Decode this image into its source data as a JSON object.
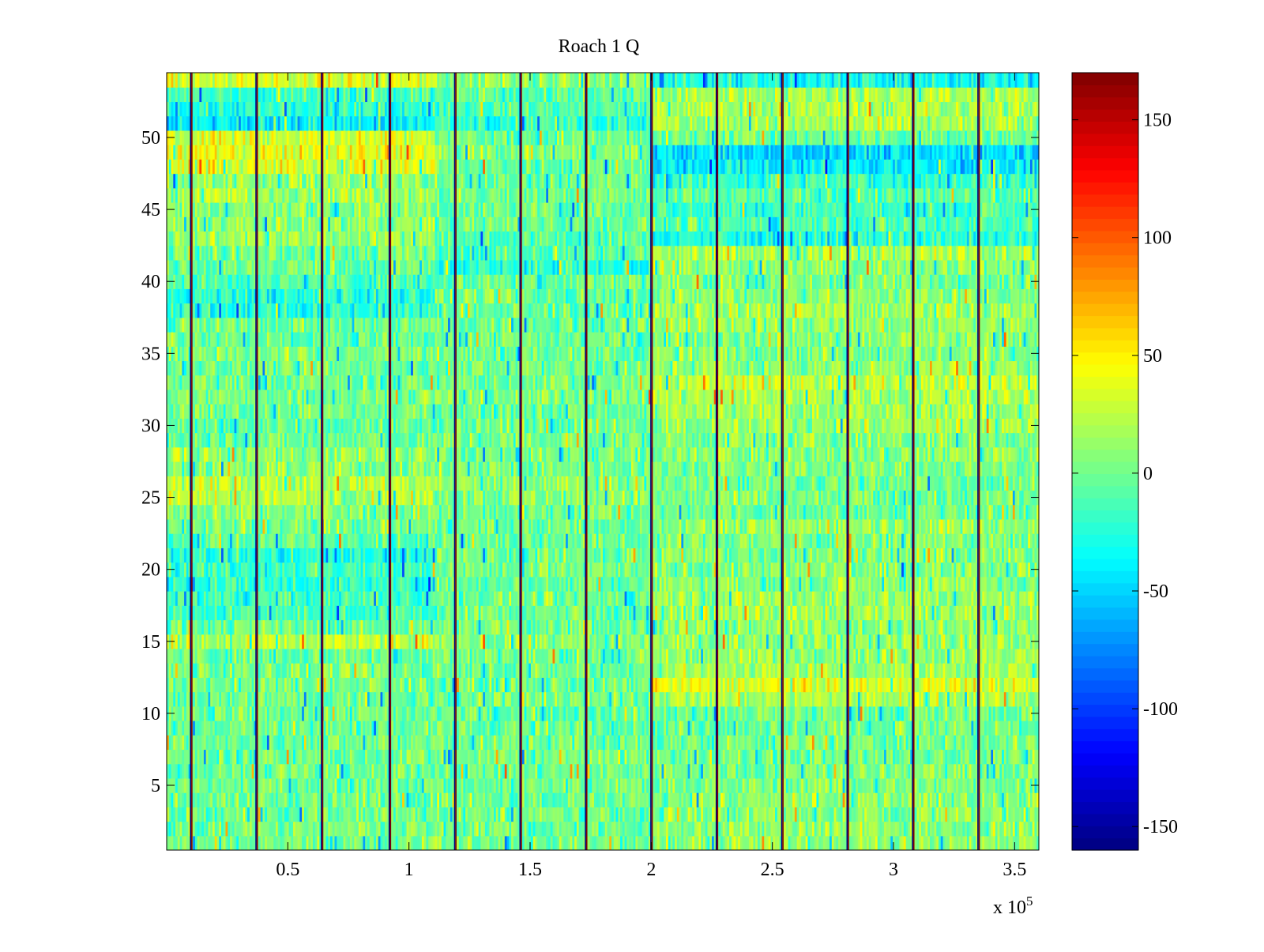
{
  "chart_data": {
    "type": "heatmap",
    "title": "Roach 1 Q",
    "xlabel": "",
    "ylabel": "",
    "x_exponent_label": "x 10",
    "x_exponent_power": "5",
    "xlim": [
      0,
      3.6
    ],
    "ylim": [
      0.5,
      54.5
    ],
    "x_ticks": [
      0.5,
      1,
      1.5,
      2,
      2.5,
      3,
      3.5
    ],
    "x_tick_labels": [
      "0.5",
      "1",
      "1.5",
      "2",
      "2.5",
      "3",
      "3.5"
    ],
    "y_ticks": [
      5,
      10,
      15,
      20,
      25,
      30,
      35,
      40,
      45,
      50
    ],
    "y_tick_labels": [
      "5",
      "10",
      "15",
      "20",
      "25",
      "30",
      "35",
      "40",
      "45",
      "50"
    ],
    "rows": 54,
    "colormap": "jet",
    "clim": [
      -160,
      170
    ],
    "colorbar_ticks": [
      150,
      100,
      50,
      0,
      -50,
      -100,
      -150
    ],
    "colorbar_tick_labels": [
      "150",
      "100",
      "50",
      "0",
      "-50",
      "-100",
      "-150"
    ],
    "vertical_stripes_x": [
      0.1,
      0.37,
      0.64,
      0.92,
      1.19,
      1.46,
      1.73,
      2.0,
      2.27,
      2.54,
      2.81,
      3.08,
      3.35
    ],
    "row_bias_segments": [
      {
        "x_from": 0.0,
        "x_to": 1.1,
        "values": [
          0,
          0,
          0,
          0,
          0,
          0,
          0,
          0,
          0,
          0,
          0,
          0,
          0,
          0,
          25,
          0,
          -15,
          -15,
          -20,
          -15,
          -25,
          -5,
          0,
          8,
          22,
          22,
          8,
          10,
          0,
          -5,
          0,
          5,
          0,
          0,
          5,
          -5,
          0,
          -25,
          -25,
          -10,
          0,
          0,
          15,
          10,
          10,
          20,
          10,
          35,
          40,
          35,
          -40,
          -25,
          -15,
          35
        ]
      },
      {
        "x_from": 1.1,
        "x_to": 2.0,
        "values": [
          0,
          0,
          0,
          0,
          0,
          0,
          0,
          0,
          0,
          0,
          0,
          0,
          0,
          0,
          8,
          0,
          0,
          0,
          0,
          0,
          0,
          0,
          0,
          0,
          10,
          10,
          5,
          0,
          0,
          0,
          0,
          5,
          0,
          0,
          0,
          0,
          0,
          -5,
          -5,
          0,
          -25,
          -10,
          -10,
          0,
          0,
          0,
          0,
          0,
          5,
          0,
          -15,
          -10,
          -5,
          10
        ]
      },
      {
        "x_from": 2.0,
        "x_to": 3.6,
        "values": [
          10,
          10,
          8,
          8,
          5,
          5,
          0,
          0,
          0,
          0,
          20,
          35,
          18,
          15,
          12,
          10,
          15,
          15,
          10,
          5,
          5,
          5,
          15,
          0,
          0,
          0,
          5,
          10,
          5,
          15,
          15,
          20,
          25,
          10,
          8,
          10,
          12,
          15,
          10,
          5,
          10,
          20,
          -25,
          -10,
          -15,
          -10,
          -20,
          -40,
          -45,
          0,
          15,
          20,
          20,
          -30
        ]
      }
    ]
  }
}
